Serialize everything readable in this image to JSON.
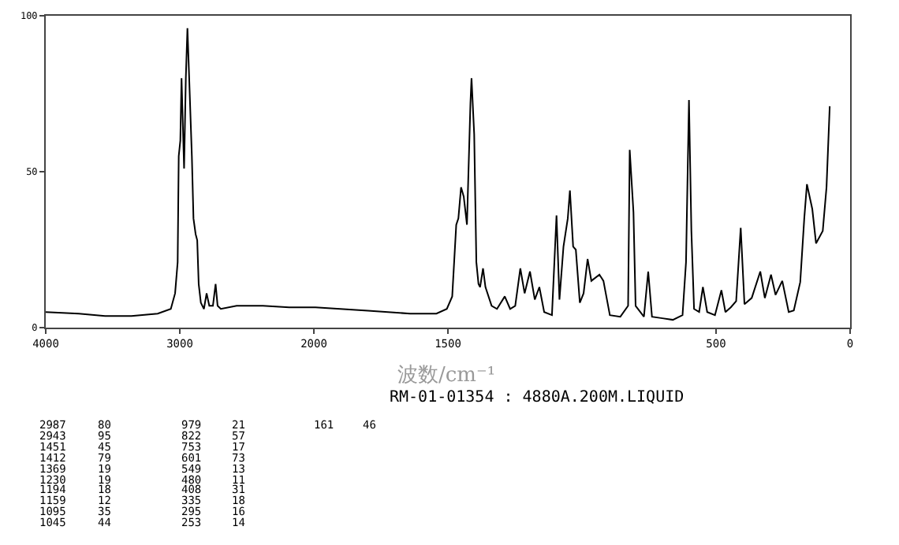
{
  "chart_data": [
    {
      "type": "line",
      "x": [
        4000,
        3753,
        3557,
        3361,
        3165,
        3067,
        3035,
        3016,
        3008,
        2996,
        2987,
        2968,
        2955,
        2943,
        2930,
        2910,
        2898,
        2882,
        2870,
        2859,
        2843,
        2820,
        2800,
        2780,
        2753,
        2733,
        2718,
        2694,
        2576,
        2380,
        2184,
        2000
      ],
      "values": [
        5,
        4.5,
        3.7,
        3.7,
        4.5,
        6,
        11,
        21,
        55,
        60,
        80,
        51,
        80,
        96,
        80,
        55,
        35,
        30,
        28,
        14,
        8,
        6,
        11,
        7,
        7,
        14,
        7,
        6,
        7,
        7,
        6.5,
        6.5
      ],
      "color": "#000000",
      "xlim": [
        4000,
        2000
      ],
      "xticks": [
        4000,
        3000,
        2000
      ],
      "ylim": [
        0,
        100
      ],
      "yticks": [
        0,
        50,
        100
      ]
    },
    {
      "type": "line",
      "xlabel": "波数/cm⁻¹",
      "annotations": [
        "RM-01-01354 : 4880A.200M.LIQUID",
        "2987",
        "80",
        "2943",
        "95",
        "1451",
        "45",
        "1412",
        "79",
        "1369",
        "19",
        "1230",
        "19",
        "1194",
        "18",
        "1159",
        "12",
        "1095",
        "35",
        "1045",
        "44",
        "979",
        "21",
        "822",
        "57",
        "753",
        "17",
        "601",
        "73",
        "549",
        "13",
        "480",
        "11",
        "408",
        "31",
        "335",
        "18",
        "295",
        "16",
        "253",
        "14",
        "161",
        "46"
      ],
      "x": [
        2000,
        1994,
        1798,
        1641,
        1543,
        1504,
        1484,
        1469,
        1461,
        1451,
        1441,
        1429,
        1416,
        1412,
        1402,
        1394,
        1386,
        1380,
        1369,
        1360,
        1337,
        1317,
        1288,
        1268,
        1249,
        1230,
        1214,
        1194,
        1176,
        1159,
        1141,
        1112,
        1095,
        1084,
        1069,
        1053,
        1045,
        1033,
        1023,
        1008,
        994,
        979,
        965,
        935,
        920,
        896,
        857,
        828,
        822,
        808,
        800,
        769,
        753,
        739,
        700,
        661,
        625,
        612,
        601,
        592,
        582,
        563,
        549,
        533,
        504,
        480,
        465,
        445,
        425,
        408,
        394,
        367,
        335,
        318,
        295,
        278,
        253,
        229,
        210,
        186,
        171,
        161,
        141,
        127,
        102,
        88,
        76
      ],
      "values": [
        6.5,
        6.5,
        5.4,
        4.5,
        4.5,
        6,
        10,
        33,
        35,
        45,
        42,
        33,
        72,
        80,
        62,
        21,
        14,
        13,
        19,
        13,
        7,
        6,
        10,
        6,
        7,
        19,
        11,
        18,
        9,
        13,
        5,
        4,
        36,
        9,
        26,
        35,
        44,
        26,
        25,
        8,
        11,
        22,
        15,
        17,
        15,
        4,
        3.5,
        7,
        57,
        37,
        7,
        3.5,
        18,
        3.5,
        3,
        2.5,
        4,
        21,
        73,
        31,
        6,
        5,
        13,
        5,
        4,
        12,
        5,
        6.5,
        8.5,
        32,
        7.5,
        9.5,
        18,
        9.5,
        17,
        10.5,
        15,
        5,
        5.5,
        14.6,
        35,
        46,
        38,
        27,
        31,
        45,
        71
      ],
      "color": "#000000",
      "xlim": [
        2000,
        0
      ],
      "xticks": [
        {
          "value": 2000,
          "label": null
        },
        1500,
        500,
        0
      ],
      "ylim": [
        0,
        100
      ],
      "yticks": [
        0,
        50,
        100
      ],
      "tick_labels": "x"
    }
  ]
}
